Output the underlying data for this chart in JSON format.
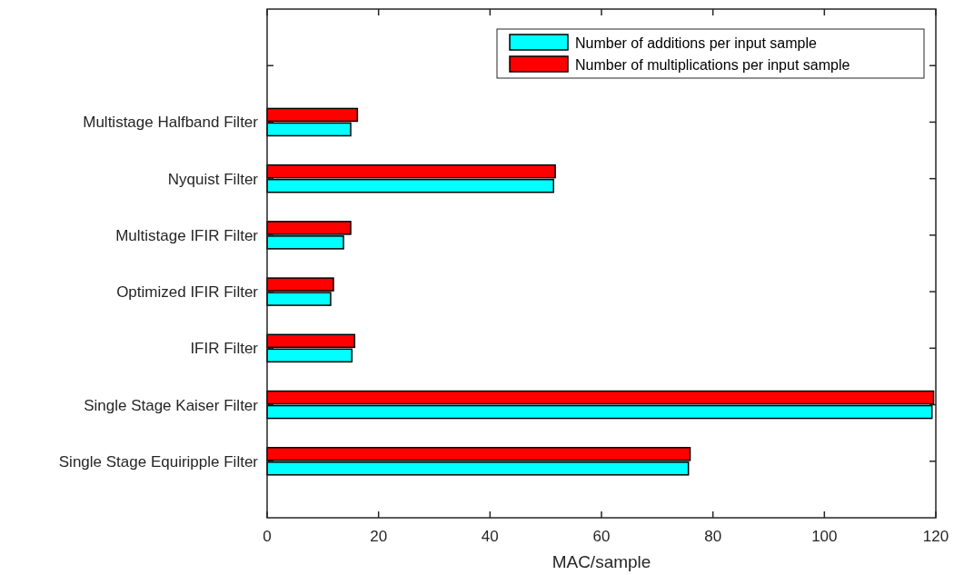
{
  "chart_data": {
    "type": "bar",
    "orientation": "horizontal",
    "xlabel": "MAC/sample",
    "categories": [
      null,
      "Multistage Halfband Filter",
      "Nyquist Filter",
      "Multistage IFIR Filter",
      "Optimized IFIR Filter",
      "IFIR Filter",
      "Single Stage Kaiser Filter",
      "Single Stage Equiripple Filter"
    ],
    "series": [
      {
        "name": "Number of additions per input sample",
        "color": "#00ffff",
        "values": [
          null,
          15.0,
          51.4,
          13.7,
          11.4,
          15.2,
          119.3,
          75.6
        ]
      },
      {
        "name": "Number of multiplications per input sample",
        "color": "#ff0000",
        "values": [
          null,
          16.2,
          51.7,
          15.0,
          11.9,
          15.7,
          119.6,
          75.9
        ]
      }
    ],
    "xlim": [
      0,
      120
    ],
    "xticks": [
      0,
      20,
      40,
      60,
      80,
      100,
      120
    ],
    "legend": "top right",
    "grid": false
  }
}
